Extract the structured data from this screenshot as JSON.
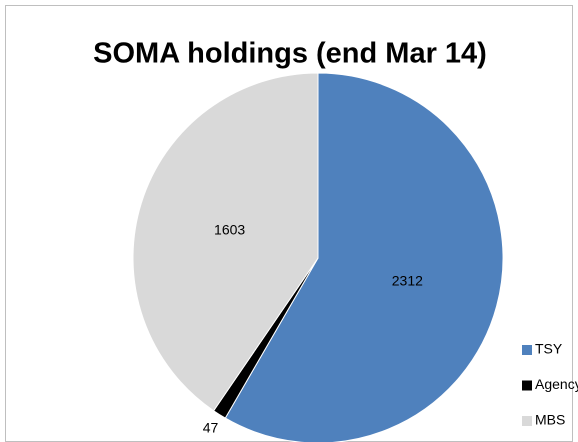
{
  "chart_data": {
    "type": "pie",
    "title": "SOMA holdings (end Mar 14)",
    "categories": [
      "TSY",
      "Agency",
      "MBS"
    ],
    "values": [
      2312,
      47,
      1603
    ],
    "colors": [
      "#4f81bd",
      "#000000",
      "#d9d9d9"
    ],
    "legend": "right"
  }
}
